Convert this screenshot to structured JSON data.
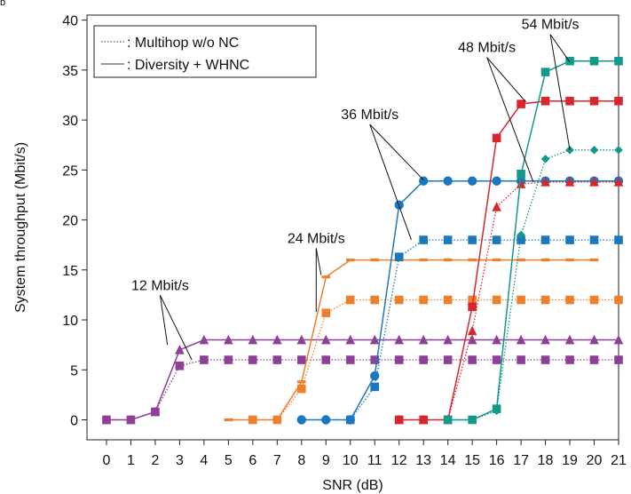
{
  "panel_tag": "b",
  "chart_data": {
    "type": "line",
    "xlabel": "SNR (dB)",
    "ylabel": "System throughput (Mbit/s)",
    "xlim": [
      -0.8,
      21
    ],
    "ylim": [
      -2,
      40.5
    ],
    "xticks": [
      0,
      1,
      2,
      3,
      4,
      5,
      6,
      7,
      8,
      9,
      10,
      11,
      12,
      13,
      14,
      15,
      16,
      17,
      18,
      19,
      20,
      21
    ],
    "yticks": [
      0,
      5,
      10,
      15,
      20,
      25,
      30,
      35,
      40
    ],
    "grid": false,
    "legend_position": "top-left",
    "legend": [
      {
        "label": ": Multihop  w/o NC",
        "style": "dotted"
      },
      {
        "label": ": Diversity + WHNC",
        "style": "solid"
      }
    ],
    "annotations": [
      {
        "text": "12 Mbit/s",
        "at": [
          2.2,
          13
        ],
        "arrows_to": [
          [
            2.5,
            7.5
          ],
          [
            3.5,
            6.0
          ]
        ]
      },
      {
        "text": "24 Mbit/s",
        "at": [
          8.6,
          17.7
        ],
        "arrows_to": [
          [
            8.8,
            14.5
          ],
          [
            8.6,
            10.8
          ]
        ]
      },
      {
        "text": "36 Mbit/s",
        "at": [
          10.8,
          30.1
        ],
        "arrows_to": [
          [
            13.0,
            24.0
          ],
          [
            12.5,
            18.0
          ]
        ]
      },
      {
        "text": "48 Mbit/s",
        "at": [
          15.6,
          36.8
        ],
        "arrows_to": [
          [
            17.2,
            31.8
          ],
          [
            17.5,
            23.8
          ]
        ]
      },
      {
        "text": "54 Mbit/s",
        "at": [
          18.2,
          39.1
        ],
        "arrows_to": [
          [
            19.0,
            35.8
          ],
          [
            19.0,
            27.0
          ]
        ]
      }
    ],
    "series": [
      {
        "rate": "12 Mbit/s",
        "scheme": "Diversity + WHNC",
        "color": "#8e3f96",
        "dash": "solid",
        "marker": "triangle",
        "x": [
          0,
          1,
          2,
          3,
          4,
          5,
          6,
          7,
          8,
          9,
          10,
          11,
          12,
          13,
          14,
          15,
          16,
          17,
          18,
          19,
          20,
          21
        ],
        "y": [
          0,
          0,
          0.8,
          7,
          8,
          8,
          8,
          8,
          8,
          8,
          8,
          8,
          8,
          8,
          8,
          8,
          8,
          8,
          8,
          8,
          8,
          8
        ]
      },
      {
        "rate": "12 Mbit/s",
        "scheme": "Multihop w/o NC",
        "color": "#8e3f96",
        "dash": "dotted",
        "marker": "square",
        "x": [
          0,
          1,
          2,
          3,
          4,
          5,
          6,
          7,
          8,
          9,
          10,
          11,
          12,
          13,
          14,
          15,
          16,
          17,
          18,
          19,
          20,
          21
        ],
        "y": [
          0,
          0,
          0.8,
          5.4,
          6,
          6,
          6,
          6,
          6,
          6,
          6,
          6,
          6,
          6,
          6,
          6,
          6,
          6,
          6,
          6,
          6,
          6
        ]
      },
      {
        "rate": "24 Mbit/s",
        "scheme": "Diversity + WHNC",
        "color": "#f07f2b",
        "dash": "solid",
        "marker": "dash",
        "x": [
          5,
          6,
          7,
          8,
          9,
          10,
          11,
          12,
          13,
          14,
          15,
          16,
          17,
          18,
          19,
          20
        ],
        "y": [
          0,
          0,
          0,
          3.8,
          14.3,
          16,
          16,
          16,
          16,
          16,
          16,
          16,
          16,
          16,
          16,
          16
        ]
      },
      {
        "rate": "24 Mbit/s",
        "scheme": "Multihop w/o NC",
        "color": "#f07f2b",
        "dash": "dotted",
        "marker": "square",
        "x": [
          6,
          7,
          8,
          9,
          10,
          11,
          12,
          13,
          14,
          15,
          16,
          17,
          18,
          19,
          20,
          21
        ],
        "y": [
          0,
          0,
          3.1,
          10.7,
          12,
          12,
          12,
          12,
          12,
          12,
          12,
          12,
          12,
          12,
          12,
          12
        ]
      },
      {
        "rate": "36 Mbit/s",
        "scheme": "Diversity + WHNC",
        "color": "#1a78bf",
        "dash": "solid",
        "marker": "circle",
        "x": [
          8,
          9,
          10,
          11,
          12,
          13,
          14,
          15,
          16,
          17,
          18,
          19,
          20,
          21
        ],
        "y": [
          0,
          0,
          0,
          4.4,
          21.5,
          23.9,
          23.9,
          23.9,
          23.9,
          23.9,
          23.9,
          23.9,
          23.9,
          23.9
        ]
      },
      {
        "rate": "36 Mbit/s",
        "scheme": "Multihop w/o NC",
        "color": "#1a78bf",
        "dash": "dotted",
        "marker": "square",
        "x": [
          10,
          11,
          12,
          13,
          14,
          15,
          16,
          17,
          18,
          19,
          20,
          21
        ],
        "y": [
          0,
          3.3,
          16.3,
          18,
          18,
          18,
          18,
          18,
          18,
          18,
          18,
          18
        ]
      },
      {
        "rate": "48 Mbit/s",
        "scheme": "Diversity + WHNC",
        "color": "#d8262f",
        "dash": "solid",
        "marker": "square",
        "x": [
          12,
          13,
          14,
          15,
          16,
          17,
          18,
          19,
          20,
          21
        ],
        "y": [
          0,
          0,
          0,
          11.3,
          28.2,
          31.6,
          31.9,
          31.9,
          31.9,
          31.9
        ]
      },
      {
        "rate": "48 Mbit/s",
        "scheme": "Multihop w/o NC",
        "color": "#d8262f",
        "dash": "dotted",
        "marker": "triangle",
        "x": [
          12,
          13,
          14,
          15,
          16,
          17,
          18,
          19,
          20,
          21
        ],
        "y": [
          0,
          0,
          0,
          8.9,
          21.3,
          23.6,
          23.8,
          23.8,
          23.8,
          23.8
        ]
      },
      {
        "rate": "54 Mbit/s",
        "scheme": "Diversity + WHNC",
        "color": "#12998a",
        "dash": "solid",
        "marker": "square",
        "x": [
          14,
          15,
          16,
          17,
          18,
          19,
          20,
          21
        ],
        "y": [
          0,
          0,
          1.1,
          24.6,
          34.8,
          35.9,
          35.9,
          35.9
        ]
      },
      {
        "rate": "54 Mbit/s",
        "scheme": "Multihop w/o NC",
        "color": "#12998a",
        "dash": "dotted",
        "marker": "diamond",
        "x": [
          14,
          15,
          16,
          17,
          18,
          19,
          20,
          21
        ],
        "y": [
          0,
          0,
          0.9,
          18.5,
          26.1,
          27,
          27,
          27
        ]
      }
    ]
  }
}
